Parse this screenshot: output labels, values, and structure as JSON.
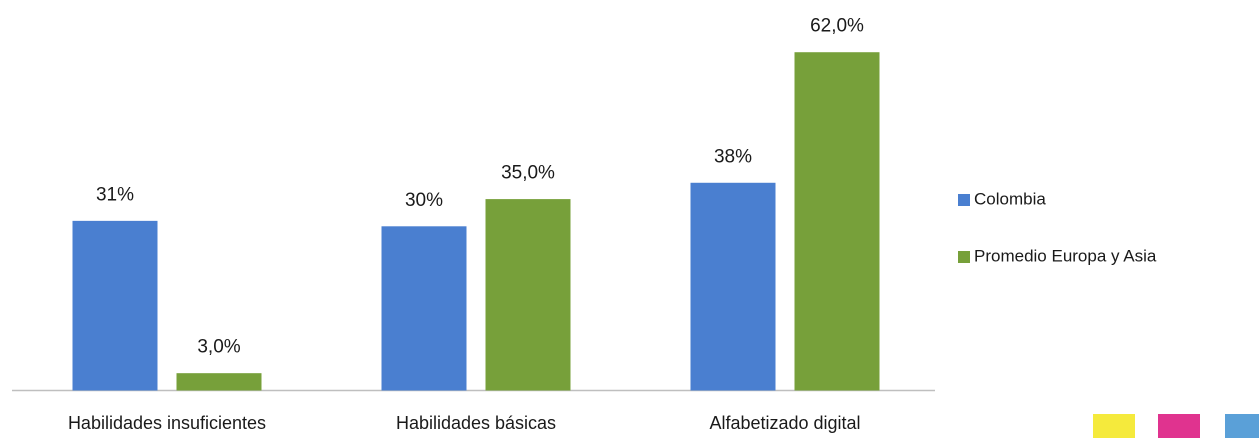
{
  "chart_data": {
    "type": "bar",
    "categories": [
      "Habilidades insuficientes",
      "Habilidades básicas",
      "Alfabetizado digital"
    ],
    "series": [
      {
        "name": "Colombia",
        "color": "#4a7fd0",
        "values": [
          31,
          30,
          38
        ],
        "value_labels": [
          "31%",
          "30%",
          "38%"
        ]
      },
      {
        "name": "Promedio Europa y Asia",
        "color": "#77a03a",
        "values": [
          3,
          35,
          62
        ],
        "value_labels": [
          "3,0%",
          "35,0%",
          "62,0%"
        ]
      }
    ],
    "legend": "right"
  }
}
